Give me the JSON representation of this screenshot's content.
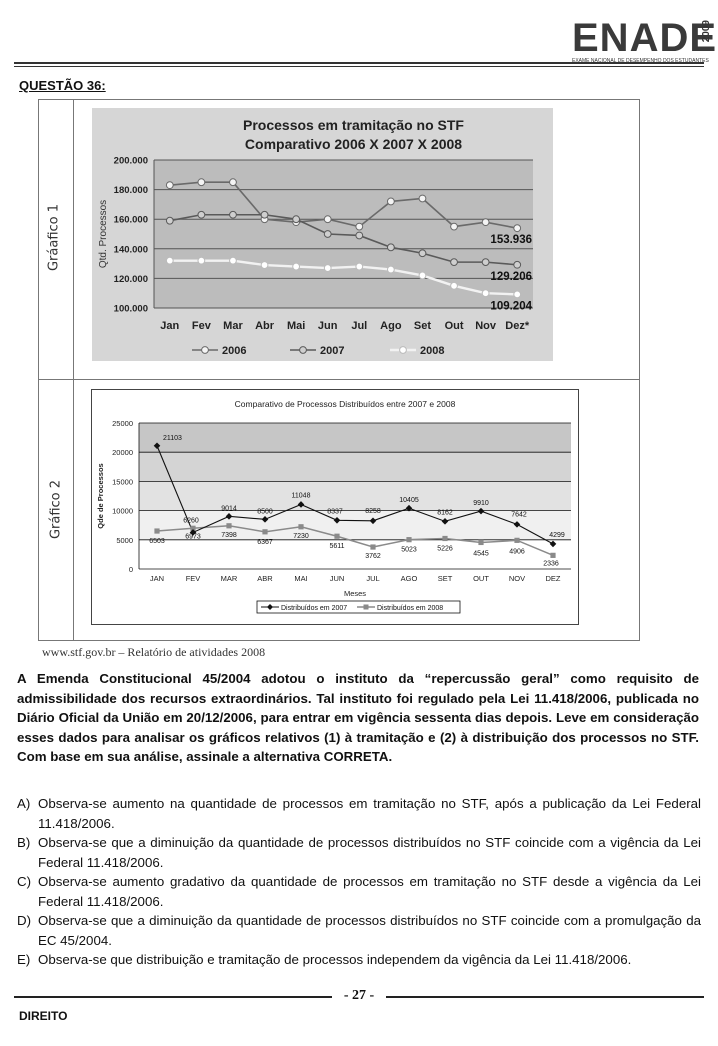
{
  "header": {
    "logo_word": "ENADE",
    "logo_year": "2009",
    "logo_sub": "EXAME NACIONAL DE DESEMPENHO DOS ESTUDANTES",
    "question_label": "QUESTÃO 36:"
  },
  "figure": {
    "side_label_1": "Gráafico 1",
    "side_label_2": "Gráfico 2",
    "source": "www.stf.gov.br – Relatório de atividades 2008"
  },
  "chart_data": [
    {
      "type": "line",
      "title": "Processos em tramitação no STF",
      "subtitle": "Comparativo 2006 X 2007 X 2008",
      "ylabel": "Qtd. Processos",
      "xlabel": "",
      "ylim": [
        100000,
        200000
      ],
      "yticks": [
        "100.000",
        "120.000",
        "140.000",
        "160.000",
        "180.000",
        "200.000"
      ],
      "categories": [
        "Jan",
        "Fev",
        "Mar",
        "Abr",
        "Mai",
        "Jun",
        "Jul",
        "Ago",
        "Set",
        "Out",
        "Nov",
        "Dez*"
      ],
      "series": [
        {
          "name": "2006",
          "values": [
            183000,
            185000,
            185000,
            160000,
            158000,
            160000,
            155000,
            172000,
            174000,
            155000,
            158000,
            153936
          ]
        },
        {
          "name": "2007",
          "values": [
            159000,
            163000,
            163000,
            163000,
            160000,
            150000,
            149000,
            141000,
            137000,
            131000,
            131000,
            129206
          ]
        },
        {
          "name": "2008",
          "values": [
            132000,
            132000,
            132000,
            129000,
            128000,
            127000,
            128000,
            126000,
            122000,
            115000,
            110000,
            109204
          ]
        }
      ],
      "annotations": [
        "153.936",
        "129.206",
        "109.204"
      ],
      "legend_position": "bottom",
      "grid": true
    },
    {
      "type": "line",
      "title": "Comparativo de Processos Distribuídos entre 2007 e 2008",
      "xlabel": "Meses",
      "ylabel": "Qde de Processos",
      "ylim": [
        0,
        25000
      ],
      "yticks": [
        "0",
        "5000",
        "10000",
        "15000",
        "20000",
        "25000"
      ],
      "categories": [
        "JAN",
        "FEV",
        "MAR",
        "ABR",
        "MAI",
        "JUN",
        "JUL",
        "AGO",
        "SET",
        "OUT",
        "NOV",
        "DEZ"
      ],
      "series": [
        {
          "name": "Distribuídos em 2007",
          "values": [
            21103,
            6260,
            9014,
            8500,
            11048,
            8337,
            8258,
            10405,
            8162,
            9910,
            7642,
            4299
          ]
        },
        {
          "name": "Distribuídos em 2008",
          "values": [
            6503,
            6973,
            7398,
            6367,
            7230,
            5611,
            3762,
            5023,
            5226,
            4545,
            4906,
            2336
          ]
        }
      ],
      "legend_position": "bottom",
      "grid": true
    }
  ],
  "question": {
    "stem": "A Emenda Constitucional 45/2004 adotou o instituto da “repercussão geral” como requisito de admissibilidade dos recursos extraordinários. Tal instituto foi regulado pela Lei 11.418/2006, publicada no Diário Oficial da União em 20/12/2006, para entrar em vigência sessenta dias depois. Leve em consideração esses dados para analisar os  gráficos relativos (1) à tramitação e (2) à distribuição dos processos no STF. Com base em sua análise, assinale a alternativa CORRETA.",
    "alternatives": [
      {
        "letter": "A)",
        "text": "Observa-se aumento na quantidade de processos em tramitação no STF, após a publicação da Lei Federal 11.418/2006."
      },
      {
        "letter": "B)",
        "text": "Observa-se que a diminuição da quantidade de processos distribuídos no STF coincide com a vigência da Lei Federal 11.418/2006."
      },
      {
        "letter": "C)",
        "text": "Observa-se aumento gradativo da quantidade de processos em tramitação no STF desde a vigência da Lei Federal 11.418/2006."
      },
      {
        "letter": "D)",
        "text": "Observa-se que a diminuição da quantidade de processos distribuídos no STF coincide com a promulgação da EC 45/2004."
      },
      {
        "letter": "E)",
        "text": "Observa-se que distribuição e tramitação de processos independem da vigência da Lei 11.418/2006."
      }
    ]
  },
  "footer": {
    "page_number": "- 27 -",
    "area": "DIREITO"
  }
}
